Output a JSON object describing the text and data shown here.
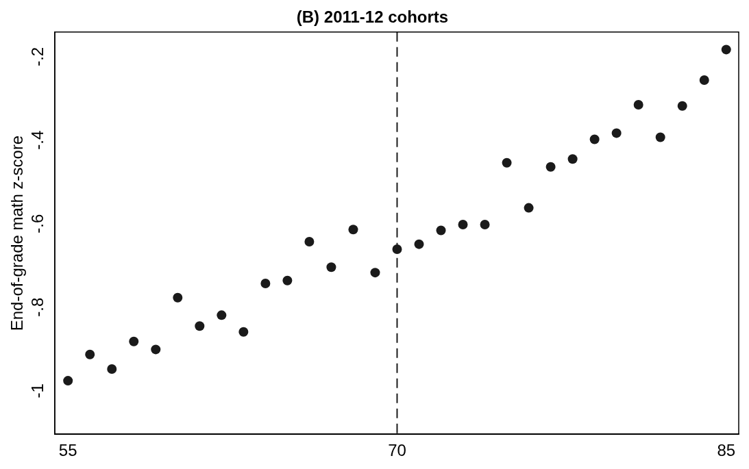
{
  "chart_data": {
    "type": "scatter",
    "title": "(B) 2011-12 cohorts",
    "ylabel": "End-of-grade math z-score",
    "x": [
      55,
      56,
      57,
      58,
      59,
      60,
      61,
      62,
      63,
      64,
      65,
      66,
      67,
      68,
      69,
      70,
      71,
      72,
      73,
      74,
      75,
      76,
      77,
      78,
      79,
      80,
      81,
      82,
      83,
      84,
      85
    ],
    "series": [
      {
        "color": "#1a1a1a",
        "values": [
          -0.976,
          -0.913,
          -0.948,
          -0.882,
          -0.901,
          -0.777,
          -0.845,
          -0.819,
          -0.859,
          -0.743,
          -0.736,
          -0.643,
          -0.704,
          -0.614,
          -0.717,
          -0.661,
          -0.649,
          -0.616,
          -0.602,
          -0.602,
          -0.454,
          -0.562,
          -0.464,
          -0.445,
          -0.398,
          -0.383,
          -0.315,
          -0.393,
          -0.318,
          -0.256,
          -0.183
        ]
      }
    ],
    "xlim": [
      54.4,
      85.57
    ],
    "ylim": [
      -1.104,
      -0.141
    ],
    "xticks": [
      55,
      70,
      85
    ],
    "yticks": [
      {
        "value": -1,
        "label": "-1"
      },
      {
        "value": -0.8,
        "label": "-.8"
      },
      {
        "value": -0.6,
        "label": "-.6"
      },
      {
        "value": -0.4,
        "label": "-.4"
      },
      {
        "value": -0.2,
        "label": "-.2"
      }
    ],
    "ref_lines": [
      {
        "axis": "x",
        "value": 70,
        "color": "#1a1a1a",
        "line_style": "dashed"
      }
    ],
    "marker": "circle",
    "grid": false,
    "legend": false
  }
}
